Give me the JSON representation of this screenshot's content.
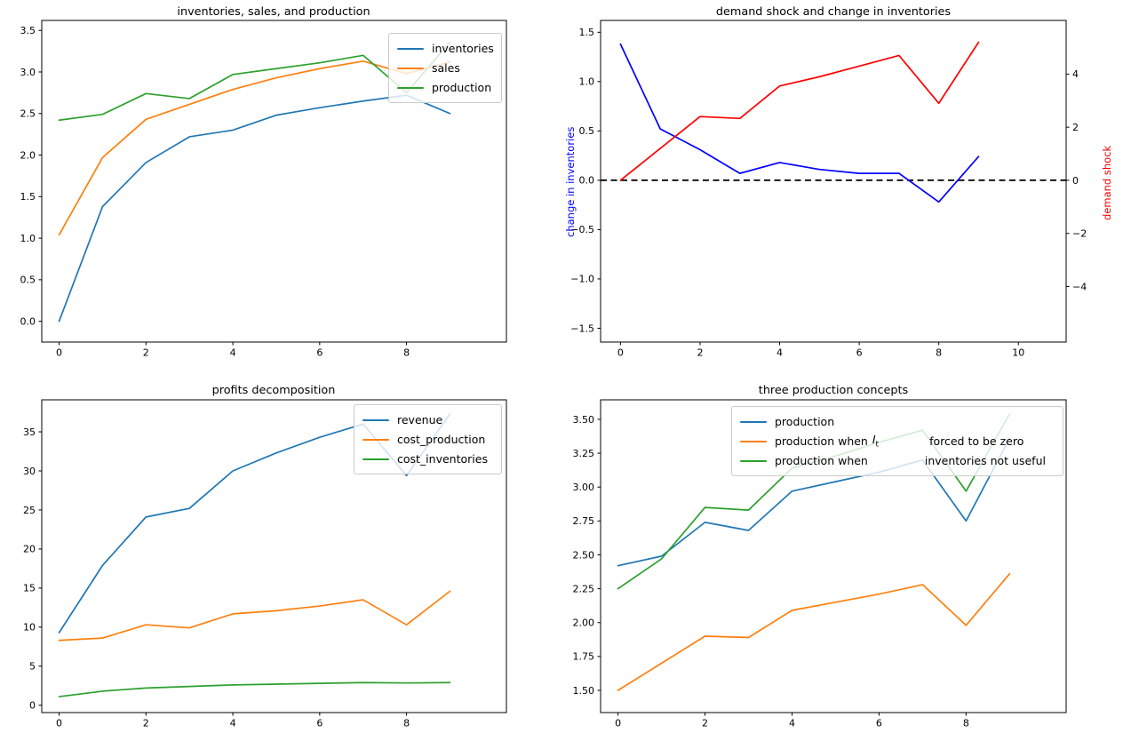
{
  "figure": {
    "background": "#ffffff"
  },
  "colors": {
    "mpl_blue": "#1f77b4",
    "mpl_orange": "#ff7f0e",
    "mpl_green": "#2ca02c",
    "pure_blue": "#0000ff",
    "pure_red": "#ff0000",
    "dashed_zero": "#000000",
    "spine": "#000000"
  },
  "chart_data": [
    {
      "type": "line",
      "title": "inventories, sales, and production",
      "x": [
        0,
        1,
        2,
        3,
        4,
        5,
        6,
        7,
        8,
        9
      ],
      "series": [
        {
          "name": "inventories",
          "color": "#1f77b4",
          "values": [
            0.0,
            1.38,
            1.91,
            2.22,
            2.3,
            2.48,
            2.57,
            2.65,
            2.72,
            2.5
          ]
        },
        {
          "name": "sales",
          "color": "#ff7f0e",
          "values": [
            1.04,
            1.97,
            2.43,
            2.61,
            2.79,
            2.93,
            3.04,
            3.13,
            2.98,
            3.12
          ]
        },
        {
          "name": "production",
          "color": "#2ca02c",
          "values": [
            2.42,
            2.49,
            2.74,
            2.68,
            2.97,
            3.04,
            3.11,
            3.2,
            2.75,
            3.36
          ]
        }
      ],
      "xticks": [
        0,
        2,
        4,
        6,
        8
      ],
      "yticks": [
        0.0,
        0.5,
        1.0,
        1.5,
        2.0,
        2.5,
        3.0,
        3.5
      ],
      "ydecimals": 1,
      "xlim": [
        -0.4,
        10.3
      ],
      "ylim": [
        -0.25,
        3.62
      ],
      "grid": false,
      "legend_position": "upper right"
    },
    {
      "type": "line",
      "title": "demand shock and change in inventories",
      "ylabel_left": "change in inventories",
      "ylabel_right": "demand shock",
      "x": [
        0,
        1,
        2,
        3,
        4,
        5,
        6,
        7,
        8,
        9
      ],
      "series": [
        {
          "name": "change in inventories",
          "axis": "left",
          "color": "#0000ff",
          "values": [
            1.38,
            0.52,
            0.31,
            0.07,
            0.18,
            0.11,
            0.07,
            0.07,
            -0.22,
            0.24
          ]
        },
        {
          "name": "demand shock",
          "axis": "right",
          "color": "#ff0000",
          "values": [
            0.0,
            1.2,
            2.4,
            2.33,
            3.55,
            3.9,
            4.3,
            4.7,
            2.9,
            5.2
          ]
        }
      ],
      "zero_line": {
        "y": 0,
        "style": "dashed",
        "color": "#000000"
      },
      "xticks": [
        0,
        2,
        4,
        6,
        8,
        10
      ],
      "yticks": [
        -1.5,
        -1.0,
        -0.5,
        0.0,
        0.5,
        1.0,
        1.5
      ],
      "yticks_right": [
        -4,
        -2,
        0,
        2,
        4
      ],
      "ydecimals": 1,
      "ydecimals_right": 0,
      "xlim": [
        -0.5,
        11.2
      ],
      "ylim": [
        -1.64,
        1.62
      ],
      "ylim_right": [
        -6.09,
        6.02
      ],
      "grid": false,
      "legend_position": "none"
    },
    {
      "type": "line",
      "title": "profits decomposition",
      "x": [
        0,
        1,
        2,
        3,
        4,
        5,
        6,
        7,
        8,
        9
      ],
      "series": [
        {
          "name": "revenue",
          "color": "#1f77b4",
          "values": [
            9.3,
            17.9,
            24.1,
            25.2,
            30.0,
            32.3,
            34.3,
            36.0,
            29.4,
            37.3
          ]
        },
        {
          "name": "cost_production",
          "color": "#ff7f0e",
          "values": [
            8.3,
            8.6,
            10.3,
            9.9,
            11.7,
            12.1,
            12.7,
            13.5,
            10.3,
            14.6
          ]
        },
        {
          "name": "cost_inventories",
          "color": "#2ca02c",
          "values": [
            1.1,
            1.8,
            2.2,
            2.4,
            2.6,
            2.7,
            2.8,
            2.9,
            2.85,
            2.9
          ]
        }
      ],
      "xticks": [
        0,
        2,
        4,
        6,
        8
      ],
      "yticks": [
        0,
        5,
        10,
        15,
        20,
        25,
        30,
        35
      ],
      "ydecimals": 0,
      "xlim": [
        -0.4,
        10.3
      ],
      "ylim": [
        -0.94,
        39.1
      ],
      "grid": false,
      "legend_position": "upper right"
    },
    {
      "type": "line",
      "title": "three production concepts",
      "x": [
        0,
        1,
        2,
        3,
        4,
        5,
        6,
        7,
        8,
        9
      ],
      "series": [
        {
          "name": "production",
          "color": "#1f77b4",
          "values": [
            2.42,
            2.49,
            2.74,
            2.68,
            2.97,
            3.04,
            3.11,
            3.2,
            2.75,
            3.36
          ]
        },
        {
          "name": "production when I_t forced to be zero",
          "color": "#ff7f0e",
          "values": [
            1.5,
            1.7,
            1.9,
            1.89,
            2.09,
            2.15,
            2.21,
            2.28,
            1.98,
            2.36
          ]
        },
        {
          "name": "production when inventories not useful",
          "color": "#2ca02c",
          "values": [
            2.25,
            2.47,
            2.85,
            2.83,
            3.14,
            3.23,
            3.33,
            3.42,
            2.97,
            3.54
          ]
        }
      ],
      "xticks": [
        0,
        2,
        4,
        6,
        8
      ],
      "yticks": [
        1.5,
        1.75,
        2.0,
        2.25,
        2.5,
        2.75,
        3.0,
        3.25,
        3.5
      ],
      "ydecimals": 2,
      "xlim": [
        -0.4,
        10.3
      ],
      "ylim": [
        1.336,
        3.644
      ],
      "grid": false,
      "legend_position": "upper center"
    }
  ],
  "legends": {
    "br": {
      "row1": "production",
      "row2a": "production when",
      "row2_math_base": "I",
      "row2_math_sub": "t",
      "row2b": "forced to be zero",
      "row3a": "production when",
      "row3b": "inventories not useful"
    }
  }
}
